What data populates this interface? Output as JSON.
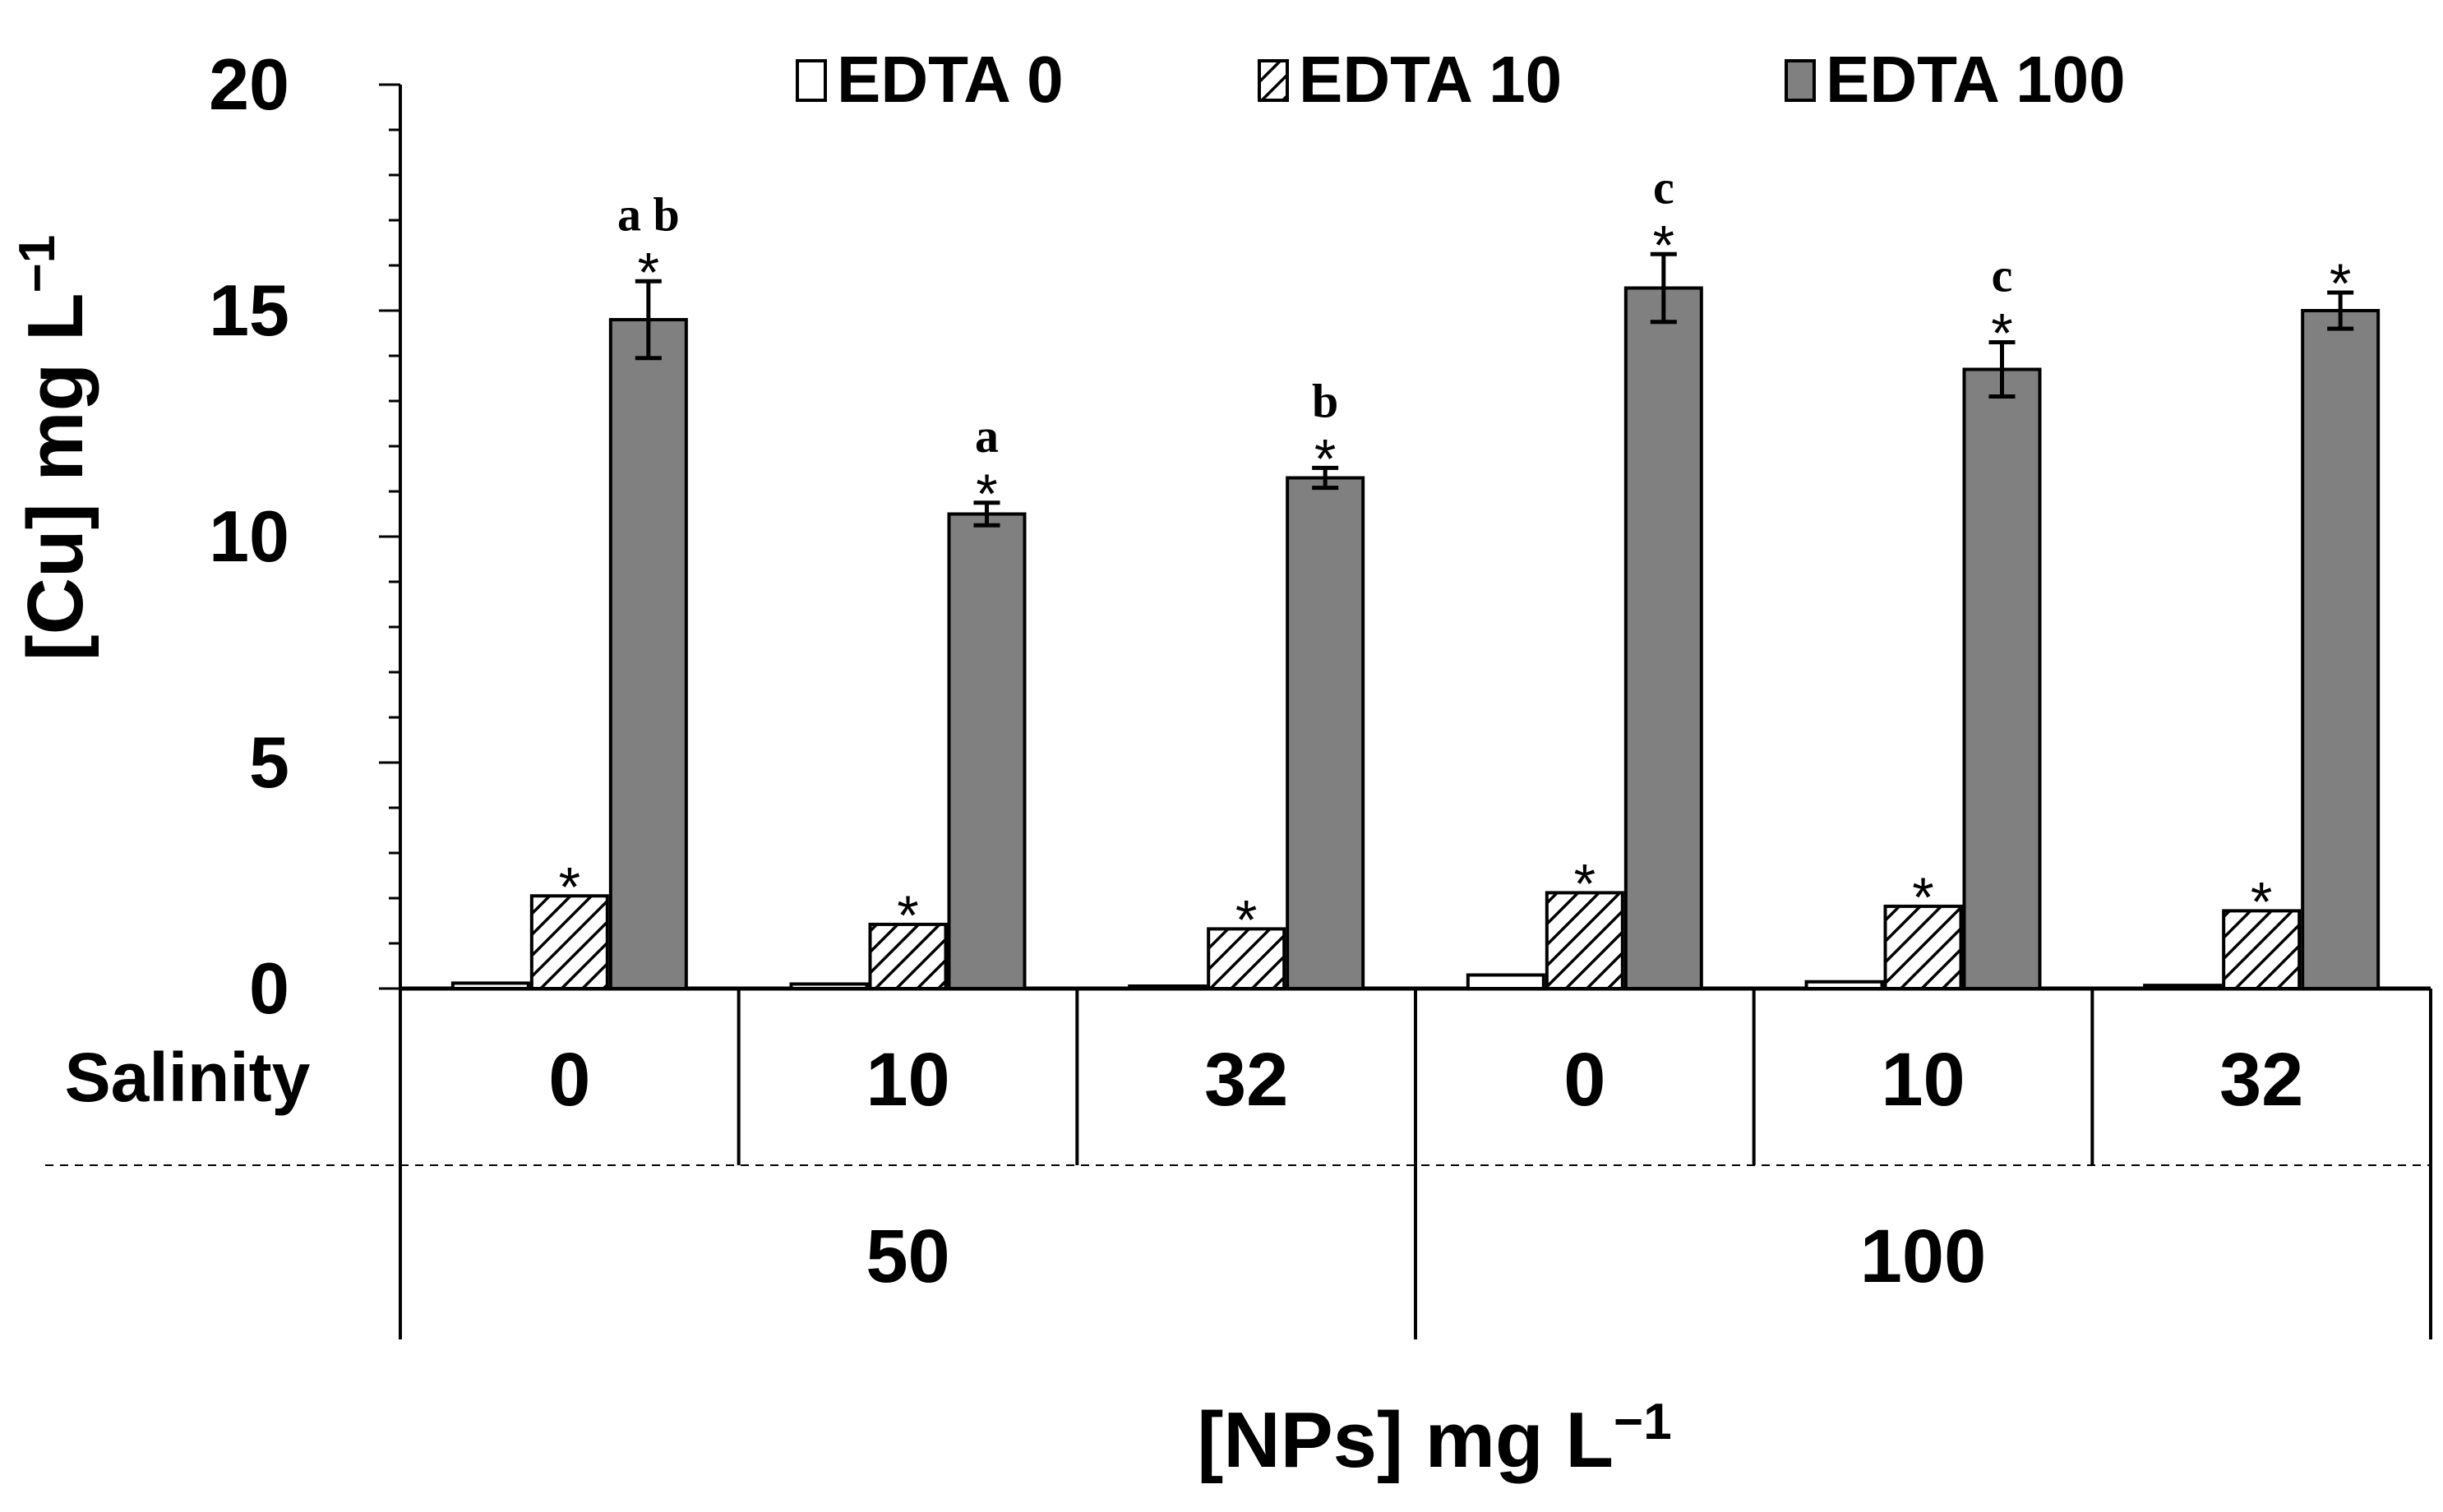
{
  "chart_data": {
    "type": "bar",
    "ylabel": "[Cu] mg L",
    "ylabel_sup": "−1",
    "xlabel": "[NPs] mg L",
    "xlabel_sup": "−1",
    "ylim": [
      0,
      20
    ],
    "yticks": [
      "0",
      "5",
      "10",
      "15",
      "20"
    ],
    "legend_position": "top",
    "row_header": "Salinity",
    "categories": [
      "0",
      "10",
      "32",
      "0",
      "10",
      "32"
    ],
    "groups": [
      {
        "label": "50",
        "span": [
          0,
          2
        ]
      },
      {
        "label": "100",
        "span": [
          3,
          5
        ]
      }
    ],
    "series": [
      {
        "name": "EDTA 0",
        "fill": "white",
        "values": [
          0.12,
          0.1,
          0.05,
          0.3,
          0.15,
          0.07
        ],
        "errors": [
          0,
          0,
          0,
          0,
          0,
          0
        ],
        "annotations": [
          "",
          "",
          "",
          "",
          "",
          ""
        ],
        "stars": [
          false,
          false,
          false,
          false,
          false,
          false
        ]
      },
      {
        "name": "EDTA 10",
        "fill": "hatch",
        "values": [
          2.05,
          1.42,
          1.32,
          2.12,
          1.82,
          1.72
        ],
        "errors": [
          0,
          0,
          0,
          0,
          0,
          0
        ],
        "annotations": [
          "",
          "",
          "",
          "",
          "",
          ""
        ],
        "stars": [
          true,
          true,
          true,
          true,
          true,
          true
        ]
      },
      {
        "name": "EDTA 100",
        "fill": "#808080",
        "values": [
          14.8,
          10.5,
          11.3,
          15.5,
          13.7,
          15.0
        ],
        "errors": [
          0.85,
          0.25,
          0.22,
          0.75,
          0.6,
          0.4
        ],
        "annotations": [
          "a b",
          "a",
          "b",
          "c",
          "c",
          ""
        ],
        "stars": [
          true,
          true,
          true,
          true,
          true,
          true
        ]
      }
    ]
  }
}
